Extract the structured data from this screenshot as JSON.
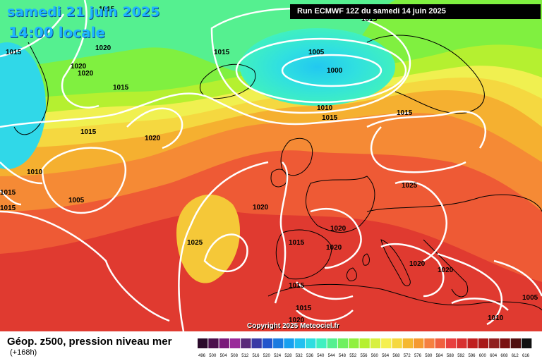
{
  "header": {
    "date_line": "samedi 21 juin 2025",
    "time_line": "14:00 locale",
    "run_label": "Run ECMWF 12Z du samedi 14 juin 2025"
  },
  "copyright": "Copyright 2025 Meteociel.fr",
  "footer": {
    "description": "Géop. z500, pression niveau mer",
    "lead": "(+168h)"
  },
  "isobar_labels": [
    "1015",
    "1020",
    "1020",
    "1020",
    "1015",
    "1015",
    "1015",
    "1005",
    "1000",
    "1010",
    "1015",
    "1015",
    "1020",
    "1010",
    "1005",
    "1015",
    "1015",
    "1020",
    "1025",
    "1015",
    "1020",
    "1015",
    "1020",
    "1020",
    "1015",
    "1015",
    "1025",
    "1020",
    "1005",
    "1010",
    "1020",
    "1015"
  ],
  "legend": {
    "values": [
      "496",
      "500",
      "504",
      "508",
      "512",
      "516",
      "520",
      "524",
      "528",
      "532",
      "536",
      "540",
      "544",
      "548",
      "552",
      "556",
      "560",
      "564",
      "568",
      "572",
      "576",
      "580",
      "584",
      "588",
      "592",
      "596",
      "600",
      "604",
      "608",
      "612",
      "616"
    ],
    "colors": [
      "#2a0a2a",
      "#4c0f4c",
      "#7a1a7a",
      "#9a2a9a",
      "#5a2a7a",
      "#3a3aa5",
      "#2255cc",
      "#1a7ae0",
      "#18a0f0",
      "#22c0f0",
      "#30dde0",
      "#40f0c0",
      "#55f090",
      "#70f060",
      "#90f040",
      "#b5f030",
      "#d8f040",
      "#f5f050",
      "#f5d840",
      "#f5b830",
      "#f59a30",
      "#f58040",
      "#f06040",
      "#e84040",
      "#d83030",
      "#c02020",
      "#a81818",
      "#902020",
      "#7a1010",
      "#501010",
      "#101010"
    ]
  }
}
